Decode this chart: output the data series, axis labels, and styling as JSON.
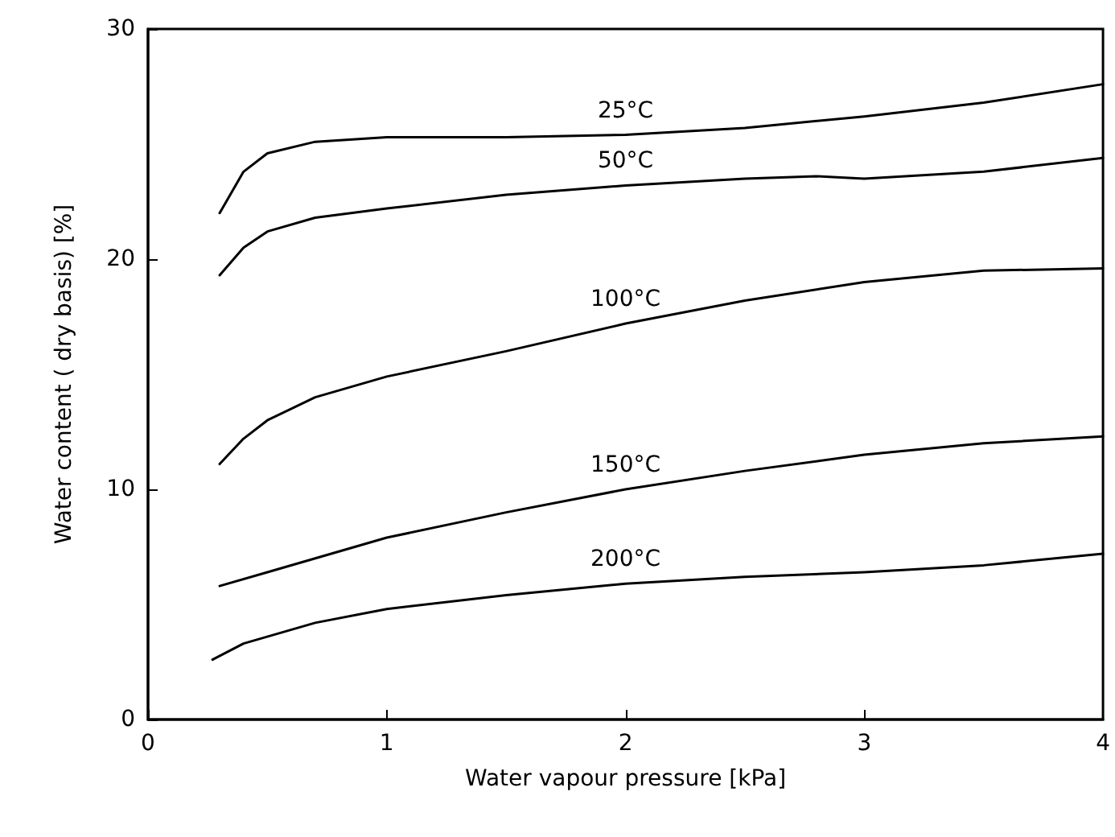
{
  "chart_data": {
    "type": "line",
    "xlabel": "Water vapour pressure [kPa]",
    "ylabel": "Water content ( dry basis) [%]",
    "xlim": [
      0,
      4
    ],
    "xticks": [
      0,
      1,
      2,
      3,
      4
    ],
    "ylim": [
      0,
      30
    ],
    "yticks": [
      0,
      10,
      20,
      30
    ],
    "grid": false,
    "legend": false,
    "marker": "none",
    "line_style": "solid",
    "series": [
      {
        "name": "25°C",
        "color": "#000000",
        "x": [
          0.3,
          0.4,
          0.5,
          0.7,
          1,
          1.5,
          2,
          2.5,
          3,
          3.5,
          4
        ],
        "values": [
          22,
          23.8,
          24.6,
          25.1,
          25.3,
          25.3,
          25.4,
          25.7,
          26.2,
          26.8,
          27.6
        ]
      },
      {
        "name": "50°C",
        "color": "#000000",
        "x": [
          0.3,
          0.4,
          0.5,
          0.7,
          1,
          1.5,
          2,
          2.5,
          2.8,
          3,
          3.5,
          4
        ],
        "values": [
          19.3,
          20.5,
          21.2,
          21.8,
          22.2,
          22.8,
          23.2,
          23.5,
          23.6,
          23.5,
          23.8,
          24.4
        ]
      },
      {
        "name": "100°C",
        "color": "#000000",
        "x": [
          0.3,
          0.4,
          0.5,
          0.7,
          1,
          1.5,
          2,
          2.5,
          3,
          3.5,
          4
        ],
        "values": [
          11.1,
          12.2,
          13,
          14,
          14.9,
          16,
          17.2,
          18.2,
          19,
          19.5,
          19.6
        ]
      },
      {
        "name": "150°C",
        "color": "#000000",
        "x": [
          0.3,
          0.5,
          1,
          1.5,
          2,
          2.5,
          3,
          3.5,
          4
        ],
        "values": [
          5.8,
          6.4,
          7.9,
          9,
          10,
          10.8,
          11.5,
          12,
          12.3
        ]
      },
      {
        "name": "200°C",
        "color": "#000000",
        "x": [
          0.27,
          0.4,
          0.7,
          1,
          1.5,
          2,
          2.5,
          3,
          3.5,
          4
        ],
        "values": [
          2.6,
          3.3,
          4.2,
          4.8,
          5.4,
          5.9,
          6.2,
          6.4,
          6.7,
          7.2
        ]
      }
    ]
  }
}
